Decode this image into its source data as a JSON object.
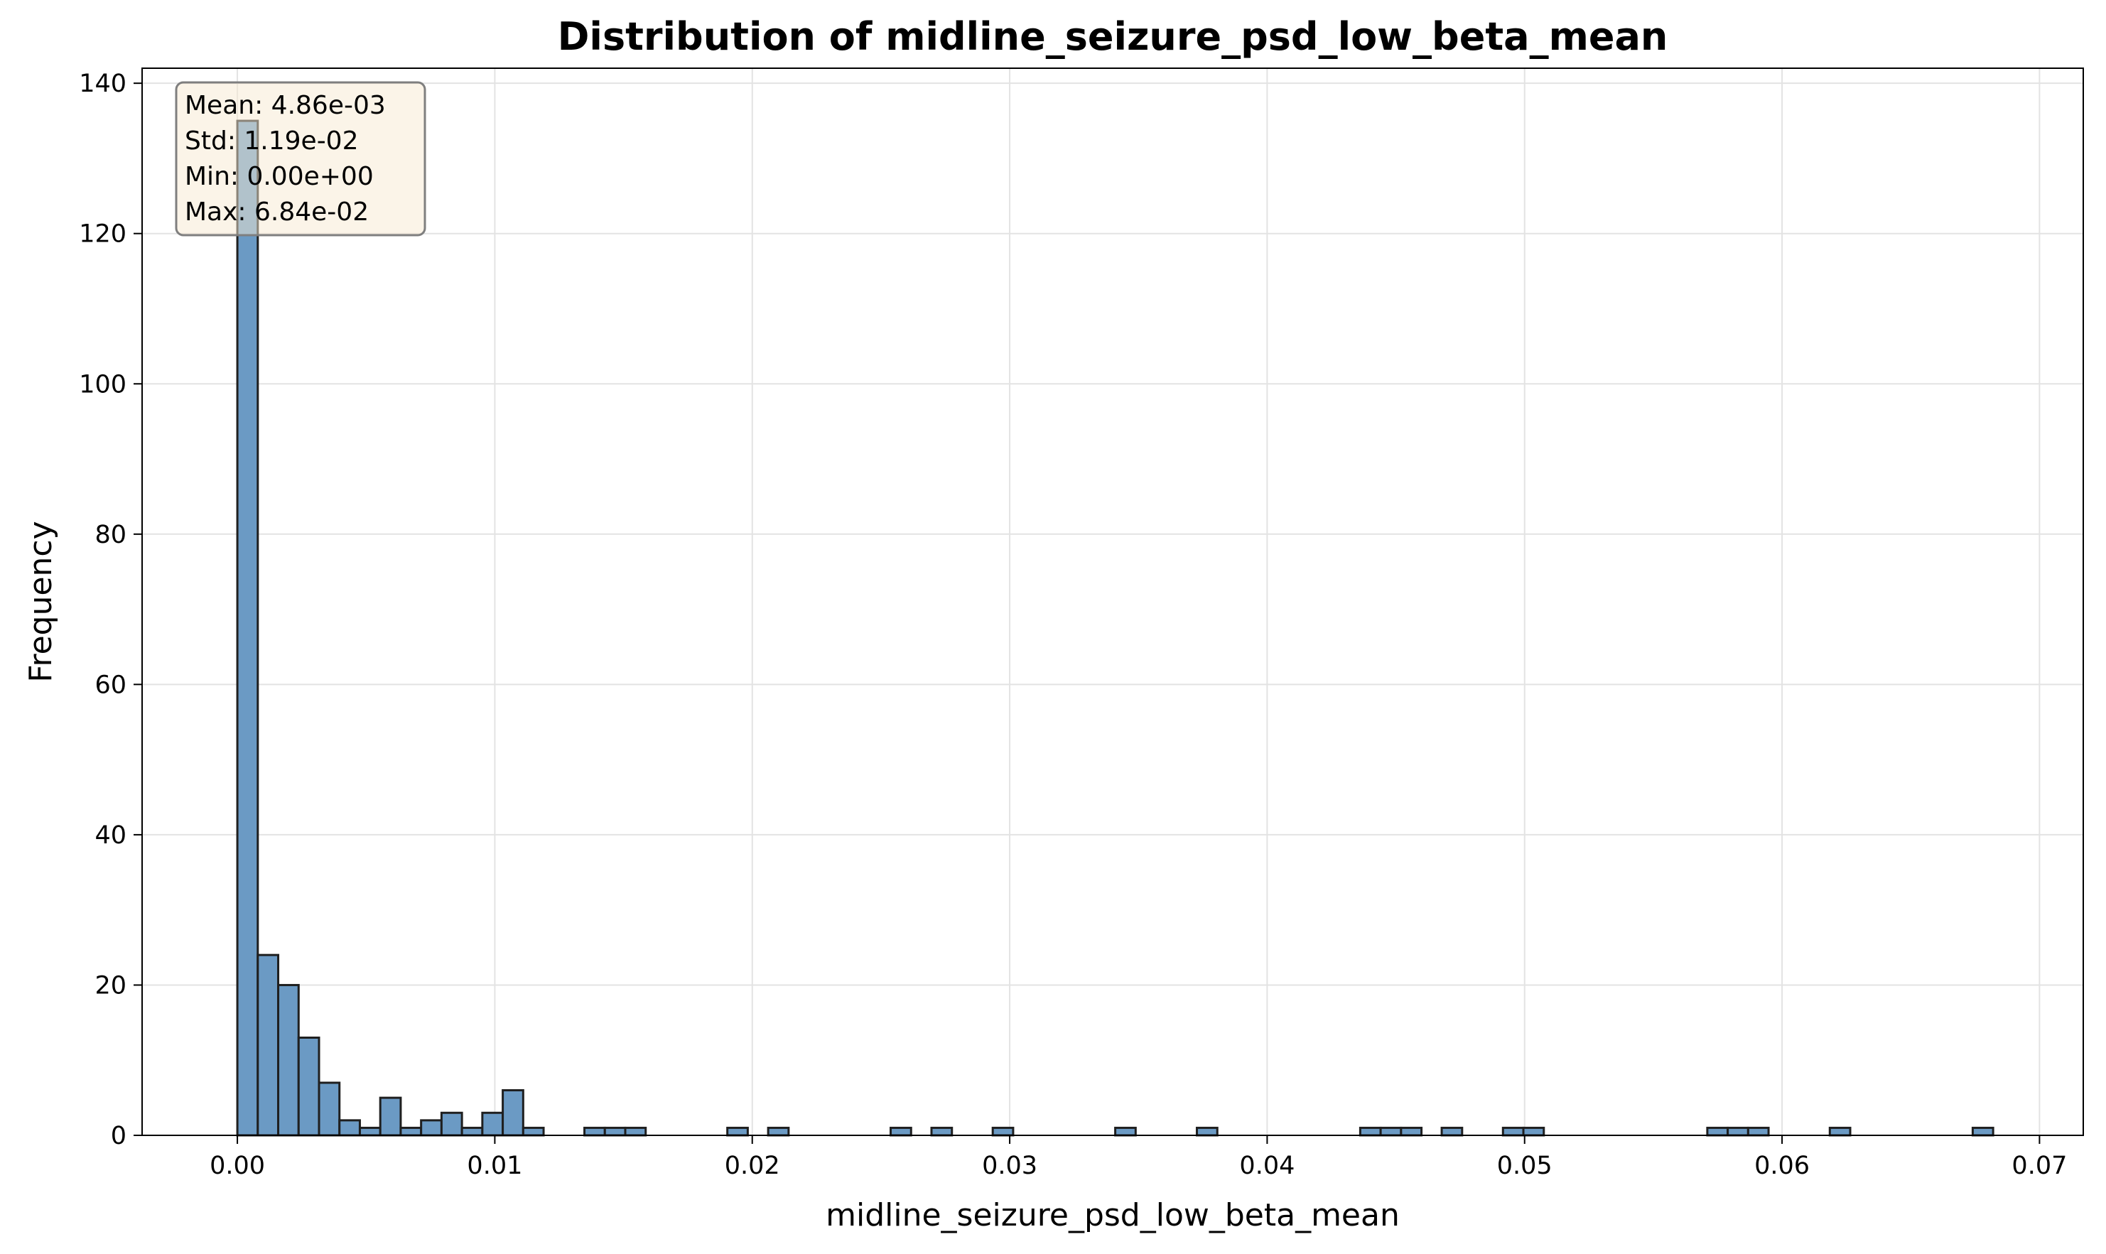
{
  "chart_data": {
    "type": "histogram",
    "title": "Distribution of midline_seizure_psd_low_beta_mean",
    "xlabel": "midline_seizure_psd_low_beta_mean",
    "ylabel": "Frequency",
    "xlim": [
      -0.0037,
      0.0717
    ],
    "ylim": [
      0,
      142
    ],
    "xticks": [
      0.0,
      0.01,
      0.02,
      0.03,
      0.04,
      0.05,
      0.06,
      0.07
    ],
    "xtick_labels": [
      "0.00",
      "0.01",
      "0.02",
      "0.03",
      "0.04",
      "0.05",
      "0.06",
      "0.07"
    ],
    "yticks": [
      0,
      20,
      40,
      60,
      80,
      100,
      120,
      140
    ],
    "ytick_labels": [
      "0",
      "20",
      "40",
      "60",
      "80",
      "100",
      "120",
      "140"
    ],
    "grid": true,
    "bar_color": "#6b9ac4",
    "edge_color": "#1f1f1f",
    "bin_width": 0.000793,
    "bins": [
      {
        "x0": 0.0,
        "count": 135
      },
      {
        "x0": 0.000793,
        "count": 24
      },
      {
        "x0": 0.001586,
        "count": 20
      },
      {
        "x0": 0.002379,
        "count": 13
      },
      {
        "x0": 0.003172,
        "count": 7
      },
      {
        "x0": 0.003965,
        "count": 2
      },
      {
        "x0": 0.004758,
        "count": 1
      },
      {
        "x0": 0.005551,
        "count": 5
      },
      {
        "x0": 0.006344,
        "count": 1
      },
      {
        "x0": 0.007137,
        "count": 2
      },
      {
        "x0": 0.00793,
        "count": 3
      },
      {
        "x0": 0.008723,
        "count": 1
      },
      {
        "x0": 0.009516,
        "count": 3
      },
      {
        "x0": 0.010309,
        "count": 6
      },
      {
        "x0": 0.011102,
        "count": 1
      },
      {
        "x0": 0.013481,
        "count": 1
      },
      {
        "x0": 0.014274,
        "count": 1
      },
      {
        "x0": 0.015067,
        "count": 1
      },
      {
        "x0": 0.019032,
        "count": 1
      },
      {
        "x0": 0.020618,
        "count": 1
      },
      {
        "x0": 0.025376,
        "count": 1
      },
      {
        "x0": 0.026962,
        "count": 1
      },
      {
        "x0": 0.029341,
        "count": 1
      },
      {
        "x0": 0.034099,
        "count": 1
      },
      {
        "x0": 0.037271,
        "count": 1
      },
      {
        "x0": 0.043615,
        "count": 1
      },
      {
        "x0": 0.044408,
        "count": 1
      },
      {
        "x0": 0.045201,
        "count": 1
      },
      {
        "x0": 0.04678,
        "count": 1
      },
      {
        "x0": 0.04916,
        "count": 1
      },
      {
        "x0": 0.049953,
        "count": 1
      },
      {
        "x0": 0.057097,
        "count": 1
      },
      {
        "x0": 0.05789,
        "count": 1
      },
      {
        "x0": 0.058683,
        "count": 1
      },
      {
        "x0": 0.061855,
        "count": 1
      },
      {
        "x0": 0.067406,
        "count": 1
      }
    ],
    "stats_box": {
      "lines": [
        "Mean: 4.86e-03",
        "Std: 1.19e-02",
        "Min: 0.00e+00",
        "Max: 6.84e-02"
      ],
      "background": "#f7ead2",
      "border": "#7f7f7f",
      "placement": "top-left"
    }
  }
}
